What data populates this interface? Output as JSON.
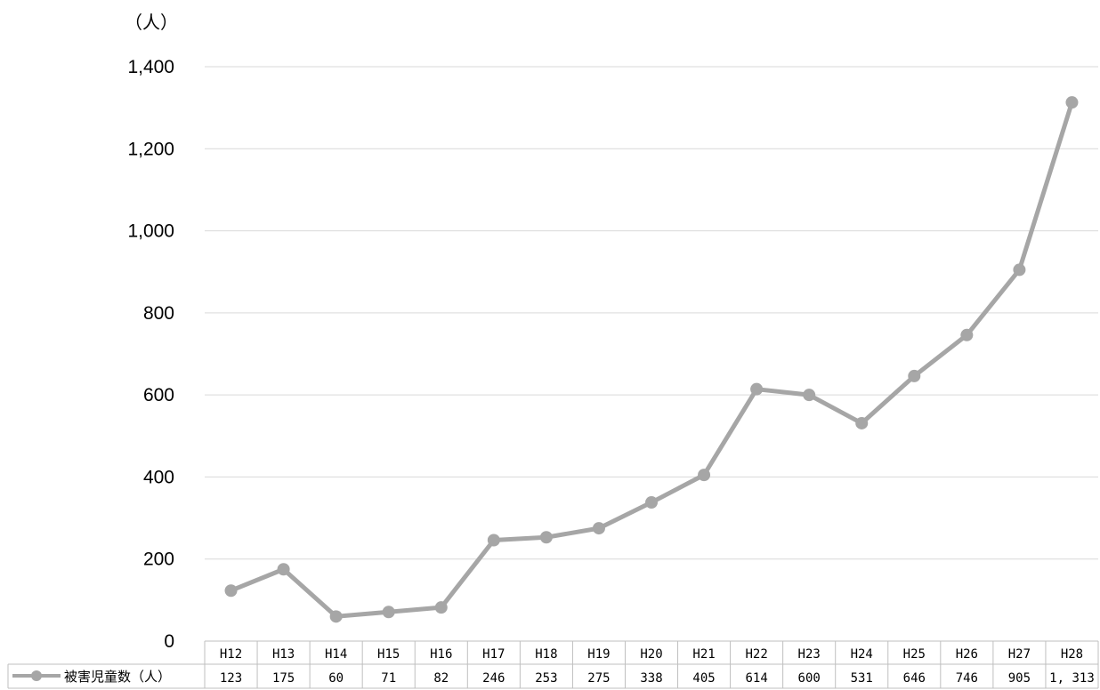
{
  "chart_data": {
    "type": "line",
    "y_unit_label": "（人）",
    "categories": [
      "H12",
      "H13",
      "H14",
      "H15",
      "H16",
      "H17",
      "H18",
      "H19",
      "H20",
      "H21",
      "H22",
      "H23",
      "H24",
      "H25",
      "H26",
      "H27",
      "H28"
    ],
    "series": [
      {
        "name": "被害児童数（人）",
        "values": [
          123,
          175,
          60,
          71,
          82,
          246,
          253,
          275,
          338,
          405,
          614,
          600,
          531,
          646,
          746,
          905,
          1313
        ],
        "value_labels": [
          "123",
          "175",
          "60",
          "71",
          "82",
          "246",
          "253",
          "275",
          "338",
          "405",
          "614",
          "600",
          "531",
          "646",
          "746",
          "905",
          "1, 313"
        ],
        "color": "#a6a6a6"
      }
    ],
    "yticks": [
      "0",
      "200",
      "400",
      "600",
      "800",
      "1,000",
      "1,200",
      "1,400"
    ],
    "ylim": [
      0,
      1400
    ],
    "grid": true,
    "legend": "data-table-left"
  }
}
